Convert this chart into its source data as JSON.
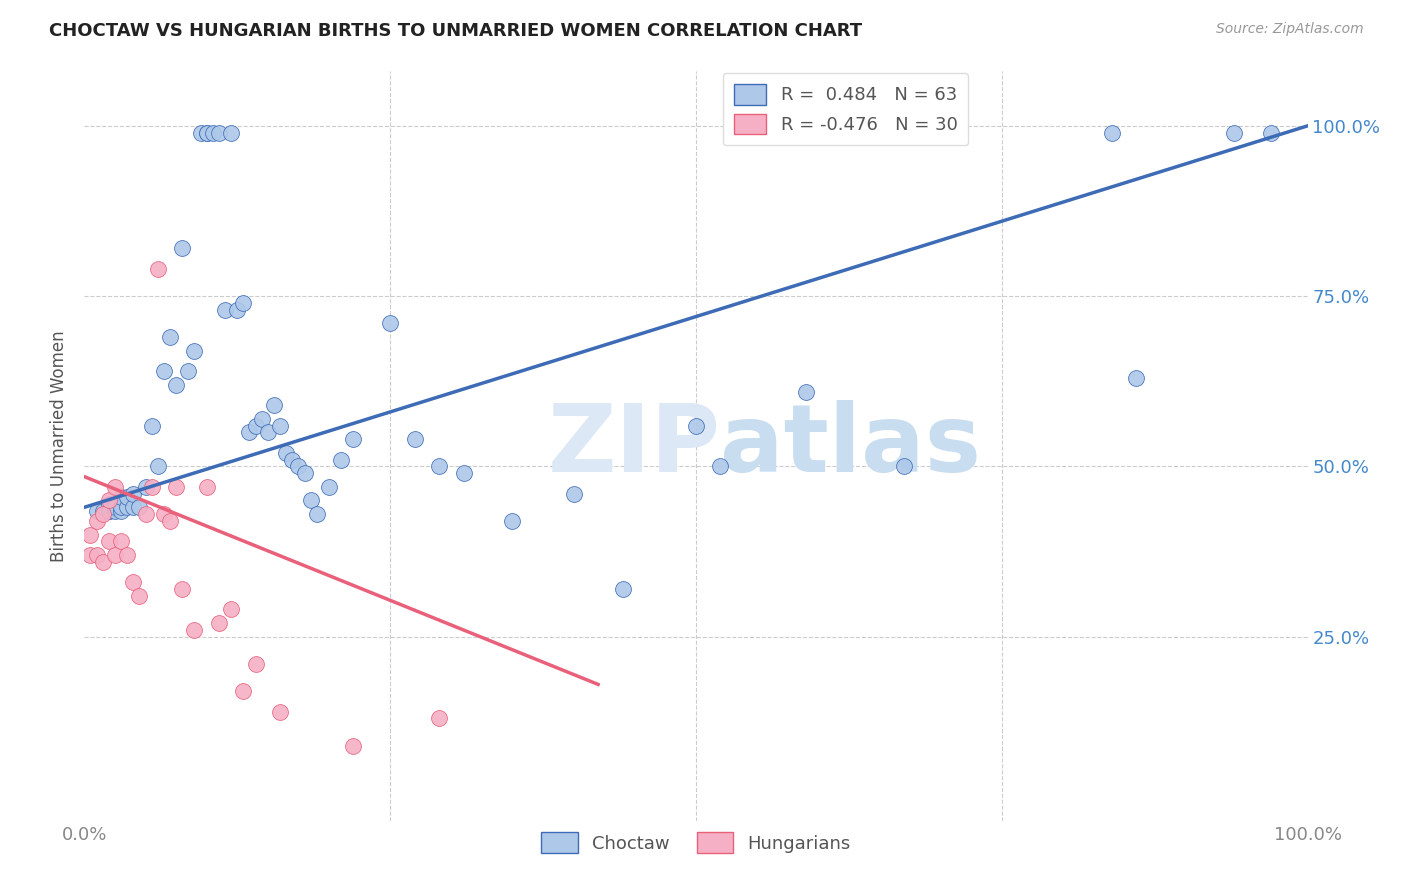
{
  "title": "CHOCTAW VS HUNGARIAN BIRTHS TO UNMARRIED WOMEN CORRELATION CHART",
  "source": "Source: ZipAtlas.com",
  "ylabel": "Births to Unmarried Women",
  "xlim": [
    0.0,
    1.0
  ],
  "ylim": [
    -0.02,
    1.08
  ],
  "yticks": [
    0.25,
    0.5,
    0.75,
    1.0
  ],
  "ytick_labels": [
    "25.0%",
    "50.0%",
    "75.0%",
    "100.0%"
  ],
  "xticks": [
    0.0,
    0.25,
    0.5,
    0.75,
    1.0
  ],
  "xtick_labels": [
    "0.0%",
    "",
    "",
    "",
    "100.0%"
  ],
  "choctaw_R": 0.484,
  "choctaw_N": 63,
  "hungarian_R": -0.476,
  "hungarian_N": 30,
  "choctaw_color": "#adc8e8",
  "choctaw_line_color": "#3d6bb5",
  "hungarian_color": "#f5b0c5",
  "hungarian_line_color": "#e8607a",
  "watermark_color": "#dce8f5",
  "background_color": "#ffffff",
  "grid_color": "#cccccc",
  "choctaw_x": [
    0.01,
    0.015,
    0.02,
    0.02,
    0.02,
    0.025,
    0.025,
    0.03,
    0.03,
    0.03,
    0.035,
    0.035,
    0.04,
    0.04,
    0.045,
    0.05,
    0.055,
    0.06,
    0.065,
    0.07,
    0.075,
    0.08,
    0.085,
    0.09,
    0.095,
    0.1,
    0.1,
    0.105,
    0.11,
    0.115,
    0.12,
    0.125,
    0.13,
    0.135,
    0.14,
    0.145,
    0.15,
    0.155,
    0.16,
    0.165,
    0.17,
    0.175,
    0.18,
    0.185,
    0.19,
    0.2,
    0.21,
    0.22,
    0.25,
    0.27,
    0.29,
    0.31,
    0.35,
    0.4,
    0.44,
    0.5,
    0.52,
    0.59,
    0.67,
    0.84,
    0.86,
    0.94,
    0.97
  ],
  "choctaw_y": [
    0.435,
    0.435,
    0.435,
    0.445,
    0.435,
    0.435,
    0.44,
    0.435,
    0.44,
    0.455,
    0.44,
    0.455,
    0.44,
    0.46,
    0.44,
    0.47,
    0.56,
    0.5,
    0.64,
    0.69,
    0.62,
    0.82,
    0.64,
    0.67,
    0.99,
    0.99,
    0.99,
    0.99,
    0.99,
    0.73,
    0.99,
    0.73,
    0.74,
    0.55,
    0.56,
    0.57,
    0.55,
    0.59,
    0.56,
    0.52,
    0.51,
    0.5,
    0.49,
    0.45,
    0.43,
    0.47,
    0.51,
    0.54,
    0.71,
    0.54,
    0.5,
    0.49,
    0.42,
    0.46,
    0.32,
    0.56,
    0.5,
    0.61,
    0.5,
    0.99,
    0.63,
    0.99,
    0.99
  ],
  "hungarian_x": [
    0.005,
    0.005,
    0.01,
    0.01,
    0.015,
    0.015,
    0.02,
    0.02,
    0.025,
    0.025,
    0.03,
    0.035,
    0.04,
    0.045,
    0.05,
    0.055,
    0.06,
    0.065,
    0.07,
    0.075,
    0.08,
    0.09,
    0.1,
    0.11,
    0.12,
    0.13,
    0.14,
    0.16,
    0.22,
    0.29
  ],
  "hungarian_y": [
    0.4,
    0.37,
    0.42,
    0.37,
    0.36,
    0.43,
    0.39,
    0.45,
    0.37,
    0.47,
    0.39,
    0.37,
    0.33,
    0.31,
    0.43,
    0.47,
    0.79,
    0.43,
    0.42,
    0.47,
    0.32,
    0.26,
    0.47,
    0.27,
    0.29,
    0.17,
    0.21,
    0.14,
    0.09,
    0.13
  ],
  "choctaw_line_x": [
    0.0,
    1.0
  ],
  "choctaw_line_y": [
    0.44,
    1.0
  ],
  "hungarian_line_x": [
    0.0,
    0.42
  ],
  "hungarian_line_y": [
    0.485,
    0.18
  ]
}
